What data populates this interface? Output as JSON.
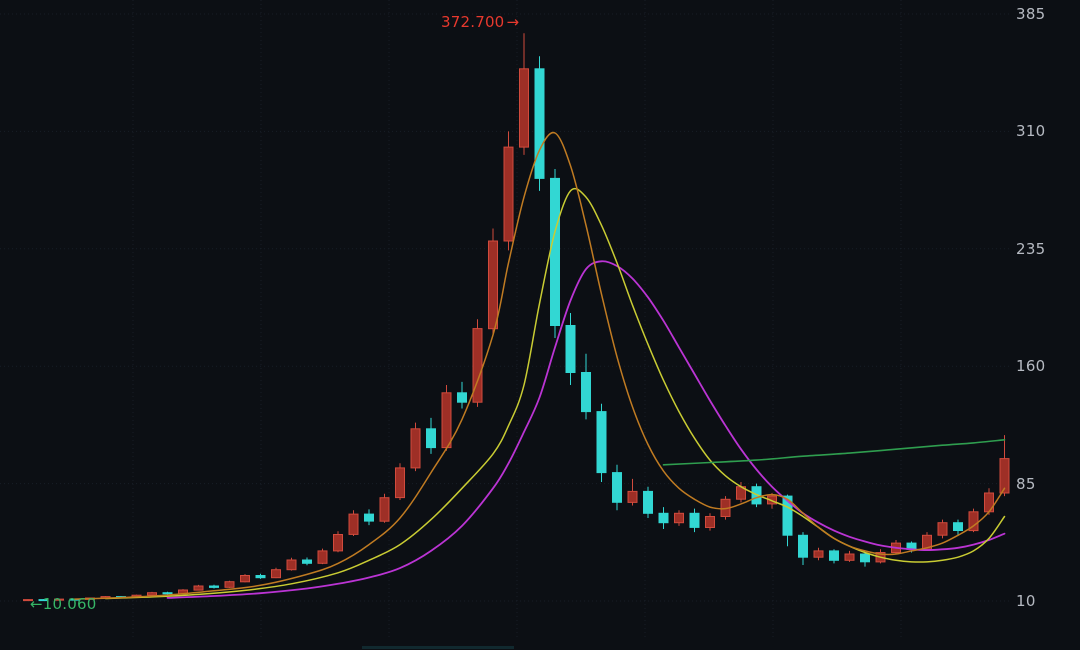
{
  "chart_data": {
    "type": "candlestick",
    "title": "",
    "legend_position": "none",
    "grid": true,
    "y_axis": {
      "ticks": [
        385,
        310,
        235,
        160,
        85,
        10
      ],
      "tick_labels": [
        "385",
        "310",
        "235",
        "160",
        "85",
        "10"
      ],
      "min": 10,
      "max": 385
    },
    "annotations": {
      "high": {
        "text": "372.700",
        "arrow": "→",
        "value": 372.7,
        "candle_index": 32
      },
      "low": {
        "text": "10.060",
        "arrow": "←",
        "value": 10.06,
        "candle_index": 0
      }
    },
    "candles": [
      [
        10.6,
        11.1,
        10.06,
        10.9
      ],
      [
        10.9,
        11.2,
        10.2,
        10.5
      ],
      [
        10.5,
        11.5,
        10.3,
        11.2
      ],
      [
        11.2,
        11.6,
        10.8,
        11.0
      ],
      [
        11.0,
        12.2,
        10.9,
        11.9
      ],
      [
        11.9,
        13.2,
        11.7,
        12.8
      ],
      [
        12.8,
        13.1,
        12.0,
        12.3
      ],
      [
        12.3,
        14.1,
        12.2,
        13.7
      ],
      [
        13.7,
        15.8,
        13.5,
        15.3
      ],
      [
        15.3,
        15.9,
        14.1,
        14.6
      ],
      [
        14.6,
        17.6,
        14.4,
        17.0
      ],
      [
        17.0,
        20.3,
        16.7,
        19.6
      ],
      [
        19.6,
        20.4,
        18.0,
        18.7
      ],
      [
        18.7,
        23.0,
        18.4,
        22.3
      ],
      [
        22.3,
        27.2,
        21.9,
        26.3
      ],
      [
        26.3,
        27.4,
        24.1,
        24.9
      ],
      [
        24.9,
        31.2,
        24.6,
        30.0
      ],
      [
        30.0,
        37.6,
        29.4,
        36.2
      ],
      [
        36.2,
        37.8,
        32.8,
        34.1
      ],
      [
        34.1,
        43.5,
        33.6,
        42.0
      ],
      [
        42.0,
        54.5,
        41.2,
        52.5
      ],
      [
        52.5,
        68.0,
        51.5,
        65.5
      ],
      [
        65.5,
        68.5,
        58.5,
        61.0
      ],
      [
        61.0,
        78.5,
        60.0,
        76.0
      ],
      [
        76.0,
        98.0,
        74.5,
        95.0
      ],
      [
        95.0,
        124.0,
        93.0,
        120.0
      ],
      [
        120.0,
        127.0,
        104.0,
        108.0
      ],
      [
        108.0,
        148.0,
        106.0,
        143.0
      ],
      [
        143.0,
        150.0,
        133.0,
        137.0
      ],
      [
        137.0,
        190.0,
        134.0,
        184.0
      ],
      [
        184.0,
        248.0,
        180.0,
        240.0
      ],
      [
        240.0,
        310.0,
        234.0,
        300.0
      ],
      [
        300.0,
        372.7,
        295.0,
        350.0
      ],
      [
        350.0,
        358.0,
        272.0,
        280.0
      ],
      [
        280.0,
        286.0,
        178.0,
        186.0
      ],
      [
        186.0,
        194.0,
        148.0,
        156.0
      ],
      [
        156.0,
        168.0,
        126.0,
        131.0
      ],
      [
        131.0,
        136.0,
        86.0,
        92.0
      ],
      [
        92.0,
        97.0,
        68.0,
        73.0
      ],
      [
        73.0,
        88.0,
        71.0,
        80.0
      ],
      [
        80.0,
        83.0,
        63.0,
        66.0
      ],
      [
        66.0,
        70.0,
        56.0,
        60.0
      ],
      [
        60.0,
        68.0,
        58.0,
        66.0
      ],
      [
        66.0,
        69.0,
        54.0,
        57.0
      ],
      [
        57.0,
        66.0,
        55.0,
        64.0
      ],
      [
        64.0,
        77.0,
        62.0,
        75.0
      ],
      [
        75.0,
        86.0,
        73.0,
        83.0
      ],
      [
        83.0,
        85.0,
        70.0,
        72.0
      ],
      [
        72.0,
        79.0,
        69.0,
        77.0
      ],
      [
        77.0,
        78.0,
        45.0,
        52.0
      ],
      [
        52.0,
        54.0,
        33.0,
        38.0
      ],
      [
        38.0,
        44.0,
        36.0,
        42.0
      ],
      [
        42.0,
        43.0,
        34.0,
        36.0
      ],
      [
        36.0,
        42.0,
        35.0,
        40.0
      ],
      [
        40.0,
        41.0,
        32.0,
        35.0
      ],
      [
        35.0,
        43.0,
        34.0,
        41.0
      ],
      [
        41.0,
        49.0,
        40.0,
        47.0
      ],
      [
        47.0,
        48.0,
        41.0,
        43.0
      ],
      [
        43.0,
        54.0,
        42.0,
        52.0
      ],
      [
        52.0,
        62.0,
        50.0,
        60.0
      ],
      [
        60.0,
        62.0,
        52.0,
        55.0
      ],
      [
        55.0,
        69.0,
        54.0,
        67.0
      ],
      [
        67.0,
        82.0,
        65.0,
        79.0
      ],
      [
        79.0,
        116.0,
        77.0,
        101.0
      ]
    ],
    "moving_averages": [
      {
        "name": "slow-magenta",
        "color": "#bb34d4",
        "width": 1.8,
        "points": [
          [
            9,
            12
          ],
          [
            12,
            13.2
          ],
          [
            15,
            15
          ],
          [
            18,
            18
          ],
          [
            20,
            21
          ],
          [
            22,
            25
          ],
          [
            24,
            31
          ],
          [
            26,
            42
          ],
          [
            28,
            58
          ],
          [
            30,
            82
          ],
          [
            31,
            98
          ],
          [
            32,
            118
          ],
          [
            33,
            140
          ],
          [
            34,
            172
          ],
          [
            35,
            202
          ],
          [
            36,
            222
          ],
          [
            37,
            227
          ],
          [
            38,
            224
          ],
          [
            39,
            216
          ],
          [
            40,
            204
          ],
          [
            41,
            189
          ],
          [
            42,
            172
          ],
          [
            43,
            155
          ],
          [
            44,
            138
          ],
          [
            45,
            122
          ],
          [
            46,
            107
          ],
          [
            47,
            94
          ],
          [
            48,
            83
          ],
          [
            49,
            74
          ],
          [
            50,
            66
          ],
          [
            51,
            60
          ],
          [
            52,
            55
          ],
          [
            53,
            51
          ],
          [
            54,
            48
          ],
          [
            55,
            45.5
          ],
          [
            56,
            44
          ],
          [
            57,
            43
          ],
          [
            58,
            42.5
          ],
          [
            59,
            43
          ],
          [
            60,
            44
          ],
          [
            61,
            46
          ],
          [
            62,
            49
          ],
          [
            63,
            53
          ]
        ]
      },
      {
        "name": "mid-yellow",
        "color": "#c9cc33",
        "width": 1.5,
        "points": [
          [
            5,
            11.6
          ],
          [
            8,
            12.6
          ],
          [
            11,
            14.2
          ],
          [
            14,
            16.8
          ],
          [
            17,
            21
          ],
          [
            20,
            28
          ],
          [
            22,
            36
          ],
          [
            24,
            46
          ],
          [
            26,
            62
          ],
          [
            28,
            82
          ],
          [
            30,
            104
          ],
          [
            31,
            122
          ],
          [
            32,
            148
          ],
          [
            33,
            200
          ],
          [
            34,
            246
          ],
          [
            35,
            272
          ],
          [
            36,
            268
          ],
          [
            37,
            250
          ],
          [
            38,
            226
          ],
          [
            39,
            199
          ],
          [
            40,
            174
          ],
          [
            41,
            151
          ],
          [
            42,
            131
          ],
          [
            43,
            114
          ],
          [
            44,
            100
          ],
          [
            45,
            90
          ],
          [
            46,
            83
          ],
          [
            47,
            78
          ],
          [
            48,
            74
          ],
          [
            49,
            70
          ],
          [
            50,
            64
          ],
          [
            51,
            57
          ],
          [
            52,
            50
          ],
          [
            53,
            45
          ],
          [
            54,
            41
          ],
          [
            55,
            38
          ],
          [
            56,
            36
          ],
          [
            57,
            35
          ],
          [
            58,
            35
          ],
          [
            59,
            36
          ],
          [
            60,
            38
          ],
          [
            61,
            42
          ],
          [
            62,
            50
          ],
          [
            63,
            64
          ]
        ]
      },
      {
        "name": "fast-orange",
        "color": "#c07b22",
        "width": 1.5,
        "points": [
          [
            3,
            11.2
          ],
          [
            6,
            12.2
          ],
          [
            9,
            13.8
          ],
          [
            12,
            16.5
          ],
          [
            15,
            20
          ],
          [
            18,
            27
          ],
          [
            20,
            34
          ],
          [
            22,
            46
          ],
          [
            24,
            63
          ],
          [
            26,
            92
          ],
          [
            28,
            126
          ],
          [
            30,
            180
          ],
          [
            31,
            226
          ],
          [
            32,
            268
          ],
          [
            33,
            298
          ],
          [
            34,
            309
          ],
          [
            35,
            288
          ],
          [
            36,
            250
          ],
          [
            37,
            206
          ],
          [
            38,
            166
          ],
          [
            39,
            134
          ],
          [
            40,
            110
          ],
          [
            41,
            93
          ],
          [
            42,
            82
          ],
          [
            43,
            75
          ],
          [
            44,
            70
          ],
          [
            45,
            69
          ],
          [
            46,
            72
          ],
          [
            47,
            76
          ],
          [
            48,
            78
          ],
          [
            49,
            75
          ],
          [
            50,
            66
          ],
          [
            51,
            57
          ],
          [
            52,
            50
          ],
          [
            53,
            45
          ],
          [
            54,
            42
          ],
          [
            55,
            40
          ],
          [
            56,
            40
          ],
          [
            57,
            42
          ],
          [
            58,
            44
          ],
          [
            59,
            47
          ],
          [
            60,
            52
          ],
          [
            61,
            58
          ],
          [
            62,
            67
          ],
          [
            63,
            82
          ]
        ]
      },
      {
        "name": "long-green",
        "color": "#2f9e4f",
        "width": 1.6,
        "points": [
          [
            41,
            97
          ],
          [
            44,
            98.5
          ],
          [
            47,
            100
          ],
          [
            50,
            102.5
          ],
          [
            53,
            104.5
          ],
          [
            56,
            107
          ],
          [
            59,
            109.5
          ],
          [
            61,
            111
          ],
          [
            63,
            113
          ]
        ]
      }
    ],
    "colors": {
      "background": "#0c0f14",
      "up": "#d14b3d",
      "up_fill": "#9e2f26",
      "down": "#32d7d3",
      "grid": "#1b212a",
      "axis_label": "#b6bac2",
      "high_annotation": "#e8392e",
      "low_annotation": "#36b566"
    }
  }
}
